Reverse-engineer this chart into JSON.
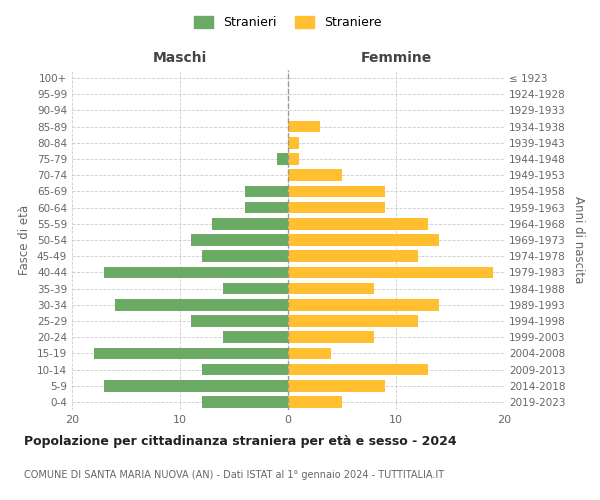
{
  "age_groups": [
    "0-4",
    "5-9",
    "10-14",
    "15-19",
    "20-24",
    "25-29",
    "30-34",
    "35-39",
    "40-44",
    "45-49",
    "50-54",
    "55-59",
    "60-64",
    "65-69",
    "70-74",
    "75-79",
    "80-84",
    "85-89",
    "90-94",
    "95-99",
    "100+"
  ],
  "birth_years": [
    "2019-2023",
    "2014-2018",
    "2009-2013",
    "2004-2008",
    "1999-2003",
    "1994-1998",
    "1989-1993",
    "1984-1988",
    "1979-1983",
    "1974-1978",
    "1969-1973",
    "1964-1968",
    "1959-1963",
    "1954-1958",
    "1949-1953",
    "1944-1948",
    "1939-1943",
    "1934-1938",
    "1929-1933",
    "1924-1928",
    "≤ 1923"
  ],
  "males": [
    8,
    17,
    8,
    18,
    6,
    9,
    16,
    6,
    17,
    8,
    9,
    7,
    4,
    4,
    0,
    1,
    0,
    0,
    0,
    0,
    0
  ],
  "females": [
    5,
    9,
    13,
    4,
    8,
    12,
    14,
    8,
    19,
    12,
    14,
    13,
    9,
    9,
    5,
    1,
    1,
    3,
    0,
    0,
    0
  ],
  "male_color": "#6aaa64",
  "female_color": "#ffbf2f",
  "title": "Popolazione per cittadinanza straniera per età e sesso - 2024",
  "subtitle": "COMUNE DI SANTA MARIA NUOVA (AN) - Dati ISTAT al 1° gennaio 2024 - TUTTITALIA.IT",
  "legend_male": "Stranieri",
  "legend_female": "Straniere",
  "xlabel_left": "Maschi",
  "xlabel_right": "Femmine",
  "ylabel_left": "Fasce di età",
  "ylabel_right": "Anni di nascita",
  "xlim": 20,
  "background_color": "#ffffff",
  "grid_color": "#cccccc"
}
